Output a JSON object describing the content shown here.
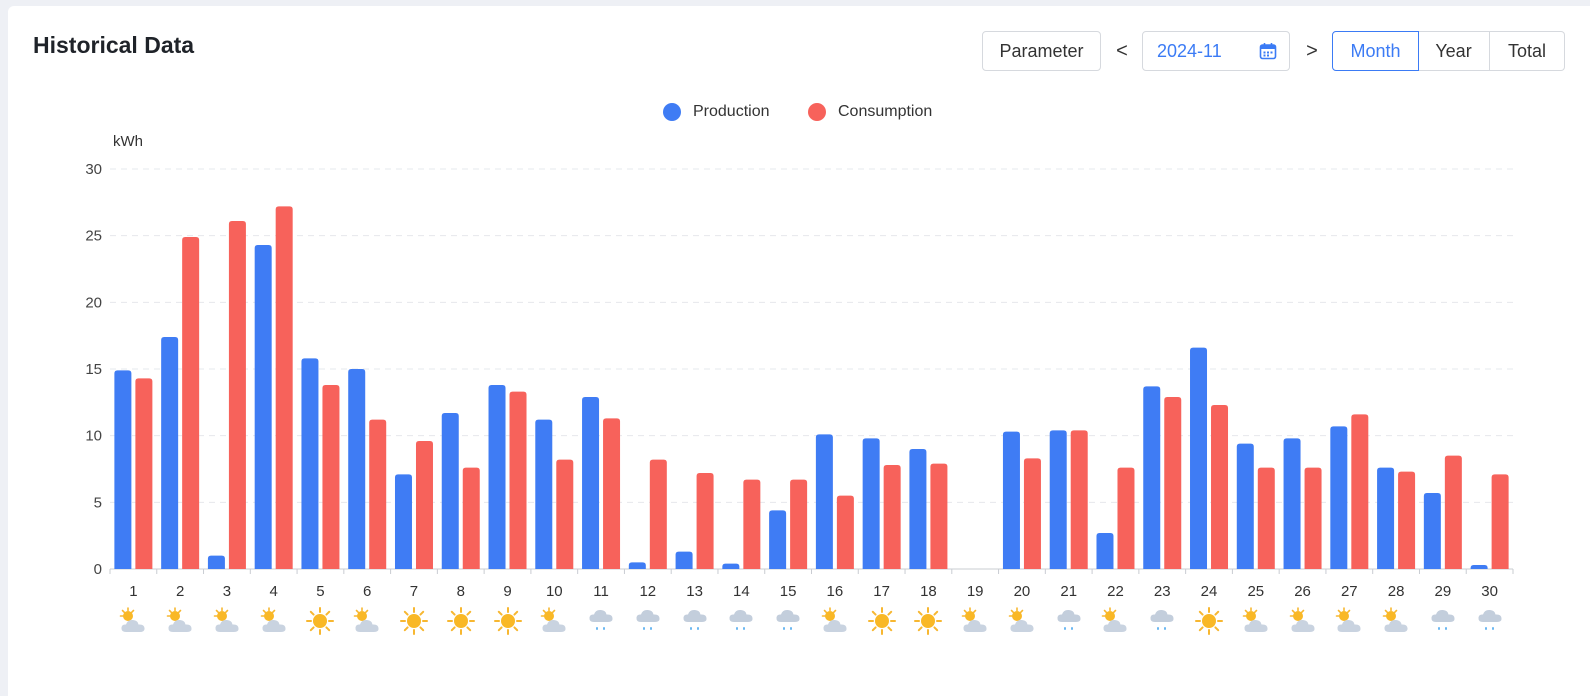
{
  "header": {
    "title": "Historical Data",
    "parameter_label": "Parameter",
    "prev_symbol": "<",
    "next_symbol": ">",
    "date_value": "2024-11",
    "tabs": [
      {
        "label": "Month",
        "active": true
      },
      {
        "label": "Year",
        "active": false
      },
      {
        "label": "Total",
        "active": false
      }
    ]
  },
  "colors": {
    "accent": "#3b7bf5",
    "production": "#3f7cf4",
    "consumption": "#f7625b"
  },
  "chart_data": {
    "type": "bar",
    "ylabel": "kWh",
    "ylim": [
      0,
      30
    ],
    "yticks": [
      "0",
      "5",
      "10",
      "15",
      "20",
      "25",
      "30"
    ],
    "grid": true,
    "legend_position": "top-center",
    "categories": [
      "1",
      "2",
      "3",
      "4",
      "5",
      "6",
      "7",
      "8",
      "9",
      "10",
      "11",
      "12",
      "13",
      "14",
      "15",
      "16",
      "17",
      "18",
      "19",
      "20",
      "21",
      "22",
      "23",
      "24",
      "25",
      "26",
      "27",
      "28",
      "29",
      "30"
    ],
    "series": [
      {
        "name": "Production",
        "values": [
          14.9,
          17.4,
          1.0,
          24.3,
          15.8,
          15.0,
          7.1,
          11.7,
          13.8,
          11.2,
          12.9,
          0.5,
          1.3,
          0.4,
          4.4,
          10.1,
          9.8,
          9.0,
          0,
          10.3,
          10.4,
          2.7,
          13.7,
          16.6,
          9.4,
          9.8,
          10.7,
          7.6,
          5.7,
          0.3
        ]
      },
      {
        "name": "Consumption",
        "values": [
          14.3,
          24.9,
          26.1,
          27.2,
          13.8,
          11.2,
          9.6,
          7.6,
          13.3,
          8.2,
          11.3,
          8.2,
          7.2,
          6.7,
          6.7,
          5.5,
          7.8,
          7.9,
          0,
          8.3,
          10.4,
          7.6,
          12.9,
          12.3,
          7.6,
          7.6,
          11.6,
          7.3,
          8.5,
          7.1
        ]
      }
    ],
    "weather_icons": [
      "partly-cloudy-icon",
      "partly-cloudy-icon",
      "partly-cloudy-icon",
      "partly-cloudy-icon",
      "sunny-icon",
      "partly-cloudy-icon",
      "sunny-icon",
      "sunny-icon",
      "sunny-icon",
      "partly-cloudy-icon",
      "rain-icon",
      "rain-icon",
      "rain-icon",
      "rain-icon",
      "rain-icon",
      "partly-cloudy-icon",
      "sunny-icon",
      "sunny-icon",
      "partly-cloudy-icon",
      "partly-cloudy-icon",
      "rain-icon",
      "partly-cloudy-icon",
      "rain-icon",
      "sunny-icon",
      "partly-cloudy-icon",
      "partly-cloudy-icon",
      "partly-cloudy-icon",
      "partly-cloudy-icon",
      "rain-icon",
      "rain-icon"
    ]
  }
}
